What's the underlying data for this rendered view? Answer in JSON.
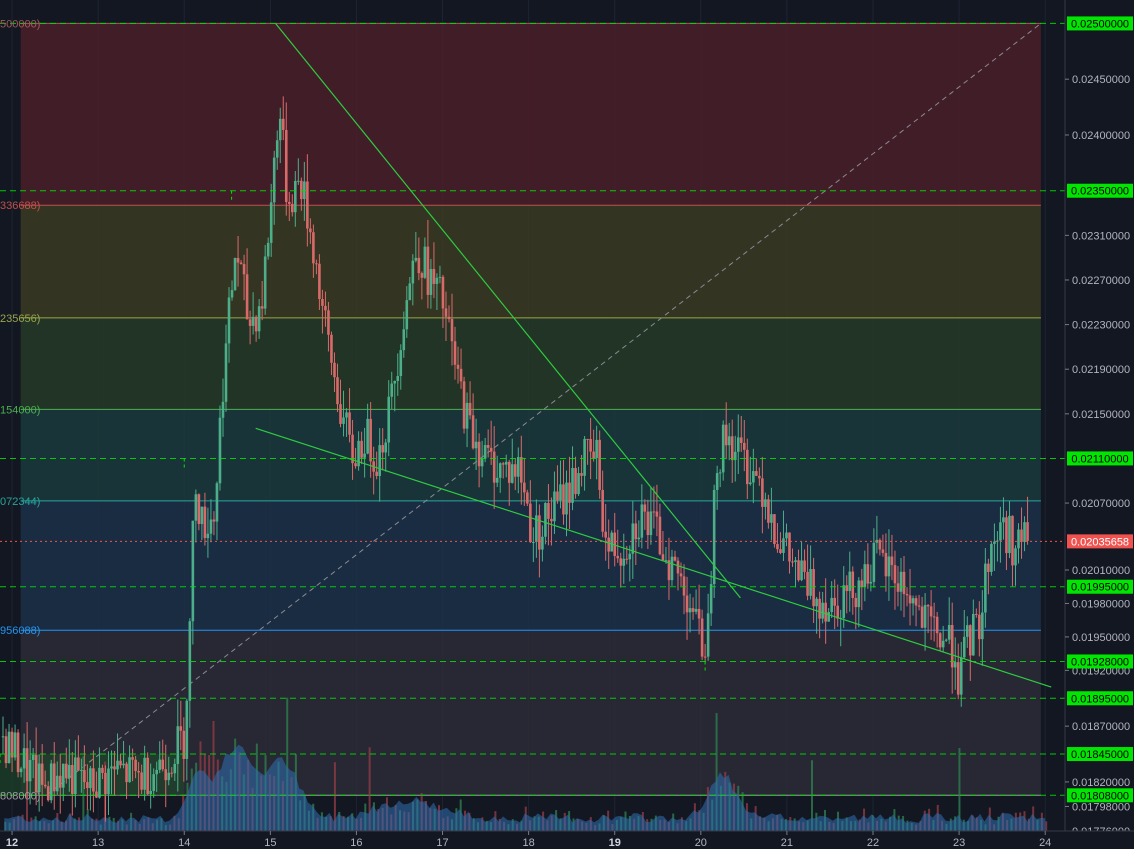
{
  "chart_data": {
    "type": "candlestick",
    "title": "",
    "xlabel": "",
    "ylabel": "",
    "x_ticks": [
      {
        "label": "12",
        "x": 12,
        "bold": true
      },
      {
        "label": "13",
        "x": 13
      },
      {
        "label": "14",
        "x": 14
      },
      {
        "label": "15",
        "x": 15
      },
      {
        "label": "16",
        "x": 16
      },
      {
        "label": "17",
        "x": 17
      },
      {
        "label": "18",
        "x": 18
      },
      {
        "label": "19",
        "x": 19,
        "bold": true
      },
      {
        "label": "20",
        "x": 20
      },
      {
        "label": "21",
        "x": 21
      },
      {
        "label": "22",
        "x": 22
      },
      {
        "label": "23",
        "x": 23
      },
      {
        "label": "24",
        "x": 24
      }
    ],
    "xlim": [
      11.86,
      24.23
    ],
    "ylim": [
      0.01776,
      0.02521
    ],
    "y_ticks": [
      "0.02450000",
      "0.02400000",
      "0.02310000",
      "0.02270000",
      "0.02230000",
      "0.02190000",
      "0.02150000",
      "0.02070000",
      "0.02010000",
      "0.01980000",
      "0.01950000",
      "0.01920000",
      "0.01870000",
      "0.01820000",
      "0.01798000",
      "0.01776000"
    ],
    "price_levels": [
      {
        "label": "0.02500000",
        "value": 0.025
      },
      {
        "label": "0.02350000",
        "value": 0.0235
      },
      {
        "label": "0.02110000",
        "value": 0.0211
      },
      {
        "label": "0.01995000",
        "value": 0.01995
      },
      {
        "label": "0.01928000",
        "value": 0.01928
      },
      {
        "label": "0.01895000",
        "value": 0.01895
      },
      {
        "label": "0.01845000",
        "value": 0.01845
      },
      {
        "label": "0.01808000",
        "value": 0.01808
      }
    ],
    "last_price": {
      "label": "0.02035658",
      "value": 0.02035658
    },
    "fib_labels": [
      {
        "label": "500000)",
        "value": 0.025
      },
      {
        "label": "336688)",
        "value": 0.02337
      },
      {
        "label": "235656)",
        "value": 0.02236
      },
      {
        "label": "154000)",
        "value": 0.02154
      },
      {
        "label": "072344)",
        "value": 0.02072
      },
      {
        "label": "956088)",
        "value": 0.01956
      },
      {
        "label": "808000)",
        "value": 0.01808
      }
    ],
    "fib_zones": [
      {
        "from": 0.025,
        "to": 0.02337,
        "color": "#4a1f28"
      },
      {
        "from": 0.02337,
        "to": 0.02236,
        "color": "#3a3a22"
      },
      {
        "from": 0.02236,
        "to": 0.02154,
        "color": "#253a26"
      },
      {
        "from": 0.02154,
        "to": 0.02072,
        "color": "#1b3a3c"
      },
      {
        "from": 0.02072,
        "to": 0.01956,
        "color": "#1c3046"
      },
      {
        "from": 0.01956,
        "to": 0.01808,
        "color": "#2b2c36"
      }
    ],
    "fib_lines": [
      {
        "value": 0.025,
        "color": "#a05a5a"
      },
      {
        "value": 0.02337,
        "color": "#c0504d"
      },
      {
        "value": 0.02236,
        "color": "#9aa64a"
      },
      {
        "value": 0.02154,
        "color": "#4caf50"
      },
      {
        "value": 0.02072,
        "color": "#26a69a"
      },
      {
        "value": 0.01956,
        "color": "#2196f3"
      },
      {
        "value": 0.01808,
        "color": "#9e9e9e"
      }
    ],
    "fib_x_range": [
      12.1,
      23.95
    ],
    "trendlines": [
      {
        "x1": 15.06,
        "y1": 0.025,
        "x2": 20.46,
        "y2": 0.01985
      },
      {
        "x1": 14.83,
        "y1": 0.02137,
        "x2": 24.07,
        "y2": 0.01905
      }
    ],
    "diagonal": {
      "x1": 12.4,
      "y1": 0.01808,
      "x2": 23.95,
      "y2": 0.025
    },
    "level_segments": [
      {
        "value": 0.0235,
        "x_from": 14.55
      },
      {
        "value": 0.0211,
        "x_from": 14.0
      },
      {
        "value": 0.01928,
        "x_from": 20.05
      },
      {
        "value": 0.01845,
        "x_from": 11.86
      }
    ],
    "up_color": "#4caf8a",
    "down_color": "#d86a6a",
    "level_color": "#00e600",
    "last_price_color": "#ef5350",
    "price_path": [
      [
        11.86,
        0.0186
      ],
      [
        12.1,
        0.0184
      ],
      [
        12.35,
        0.01815
      ],
      [
        12.6,
        0.0183
      ],
      [
        12.9,
        0.01815
      ],
      [
        13.2,
        0.0183
      ],
      [
        13.5,
        0.01825
      ],
      [
        13.8,
        0.0184
      ],
      [
        14.0,
        0.0186
      ],
      [
        14.08,
        0.0198
      ],
      [
        14.12,
        0.021
      ],
      [
        14.2,
        0.0205
      ],
      [
        14.35,
        0.0206
      ],
      [
        14.45,
        0.0218
      ],
      [
        14.6,
        0.023
      ],
      [
        14.75,
        0.0223
      ],
      [
        14.9,
        0.0225
      ],
      [
        15.0,
        0.0233
      ],
      [
        15.1,
        0.0243
      ],
      [
        15.2,
        0.0234
      ],
      [
        15.35,
        0.0236
      ],
      [
        15.5,
        0.023
      ],
      [
        15.65,
        0.0222
      ],
      [
        15.8,
        0.0216
      ],
      [
        15.95,
        0.0211
      ],
      [
        16.1,
        0.0213
      ],
      [
        16.25,
        0.0211
      ],
      [
        16.4,
        0.0216
      ],
      [
        16.55,
        0.0224
      ],
      [
        16.7,
        0.023
      ],
      [
        16.85,
        0.0227
      ],
      [
        17.0,
        0.0225
      ],
      [
        17.15,
        0.0219
      ],
      [
        17.3,
        0.0214
      ],
      [
        17.5,
        0.0211
      ],
      [
        17.7,
        0.021
      ],
      [
        17.9,
        0.021
      ],
      [
        18.05,
        0.0204
      ],
      [
        18.25,
        0.0206
      ],
      [
        18.45,
        0.0208
      ],
      [
        18.65,
        0.0211
      ],
      [
        18.8,
        0.0211
      ],
      [
        18.9,
        0.0203
      ],
      [
        19.1,
        0.0203
      ],
      [
        19.3,
        0.0206
      ],
      [
        19.5,
        0.0204
      ],
      [
        19.7,
        0.0201
      ],
      [
        19.9,
        0.0198
      ],
      [
        20.0,
        0.0194
      ],
      [
        20.1,
        0.0196
      ],
      [
        20.15,
        0.021
      ],
      [
        20.3,
        0.0213
      ],
      [
        20.5,
        0.0211
      ],
      [
        20.7,
        0.0209
      ],
      [
        20.9,
        0.0204
      ],
      [
        21.1,
        0.0201
      ],
      [
        21.3,
        0.0199
      ],
      [
        21.5,
        0.0198
      ],
      [
        21.7,
        0.0199
      ],
      [
        21.85,
        0.02
      ],
      [
        22.0,
        0.0202
      ],
      [
        22.2,
        0.0201
      ],
      [
        22.4,
        0.0199
      ],
      [
        22.6,
        0.0196
      ],
      [
        22.8,
        0.0195
      ],
      [
        22.95,
        0.0194
      ],
      [
        23.0,
        0.0191
      ],
      [
        23.1,
        0.01945
      ],
      [
        23.25,
        0.01965
      ],
      [
        23.35,
        0.0203
      ],
      [
        23.5,
        0.0205
      ],
      [
        23.65,
        0.0203
      ],
      [
        23.8,
        0.0204
      ]
    ]
  }
}
